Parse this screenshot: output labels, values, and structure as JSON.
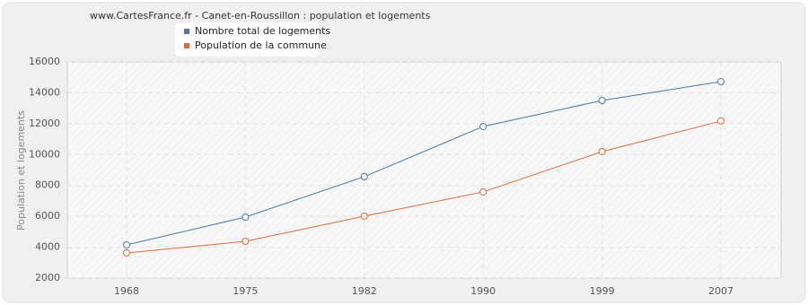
{
  "chart_data": {
    "type": "line",
    "title": "www.CartesFrance.fr - Canet-en-Roussillon : population et logements",
    "y_label": "Population et logements",
    "categories": [
      "1968",
      "1975",
      "1982",
      "1990",
      "1999",
      "2007"
    ],
    "series": [
      {
        "name": "Nombre total de logements",
        "color": "#4a76a8",
        "values": [
          4150,
          5950,
          8570,
          11820,
          13500,
          14720
        ]
      },
      {
        "name": "Population de la commune",
        "color": "#dd6a3d",
        "values": [
          3630,
          4380,
          6010,
          7580,
          10190,
          12170
        ]
      }
    ],
    "ylim": [
      2000,
      16000
    ],
    "yticks": [
      2000,
      4000,
      6000,
      8000,
      10000,
      12000,
      14000,
      16000
    ],
    "grid": true
  }
}
